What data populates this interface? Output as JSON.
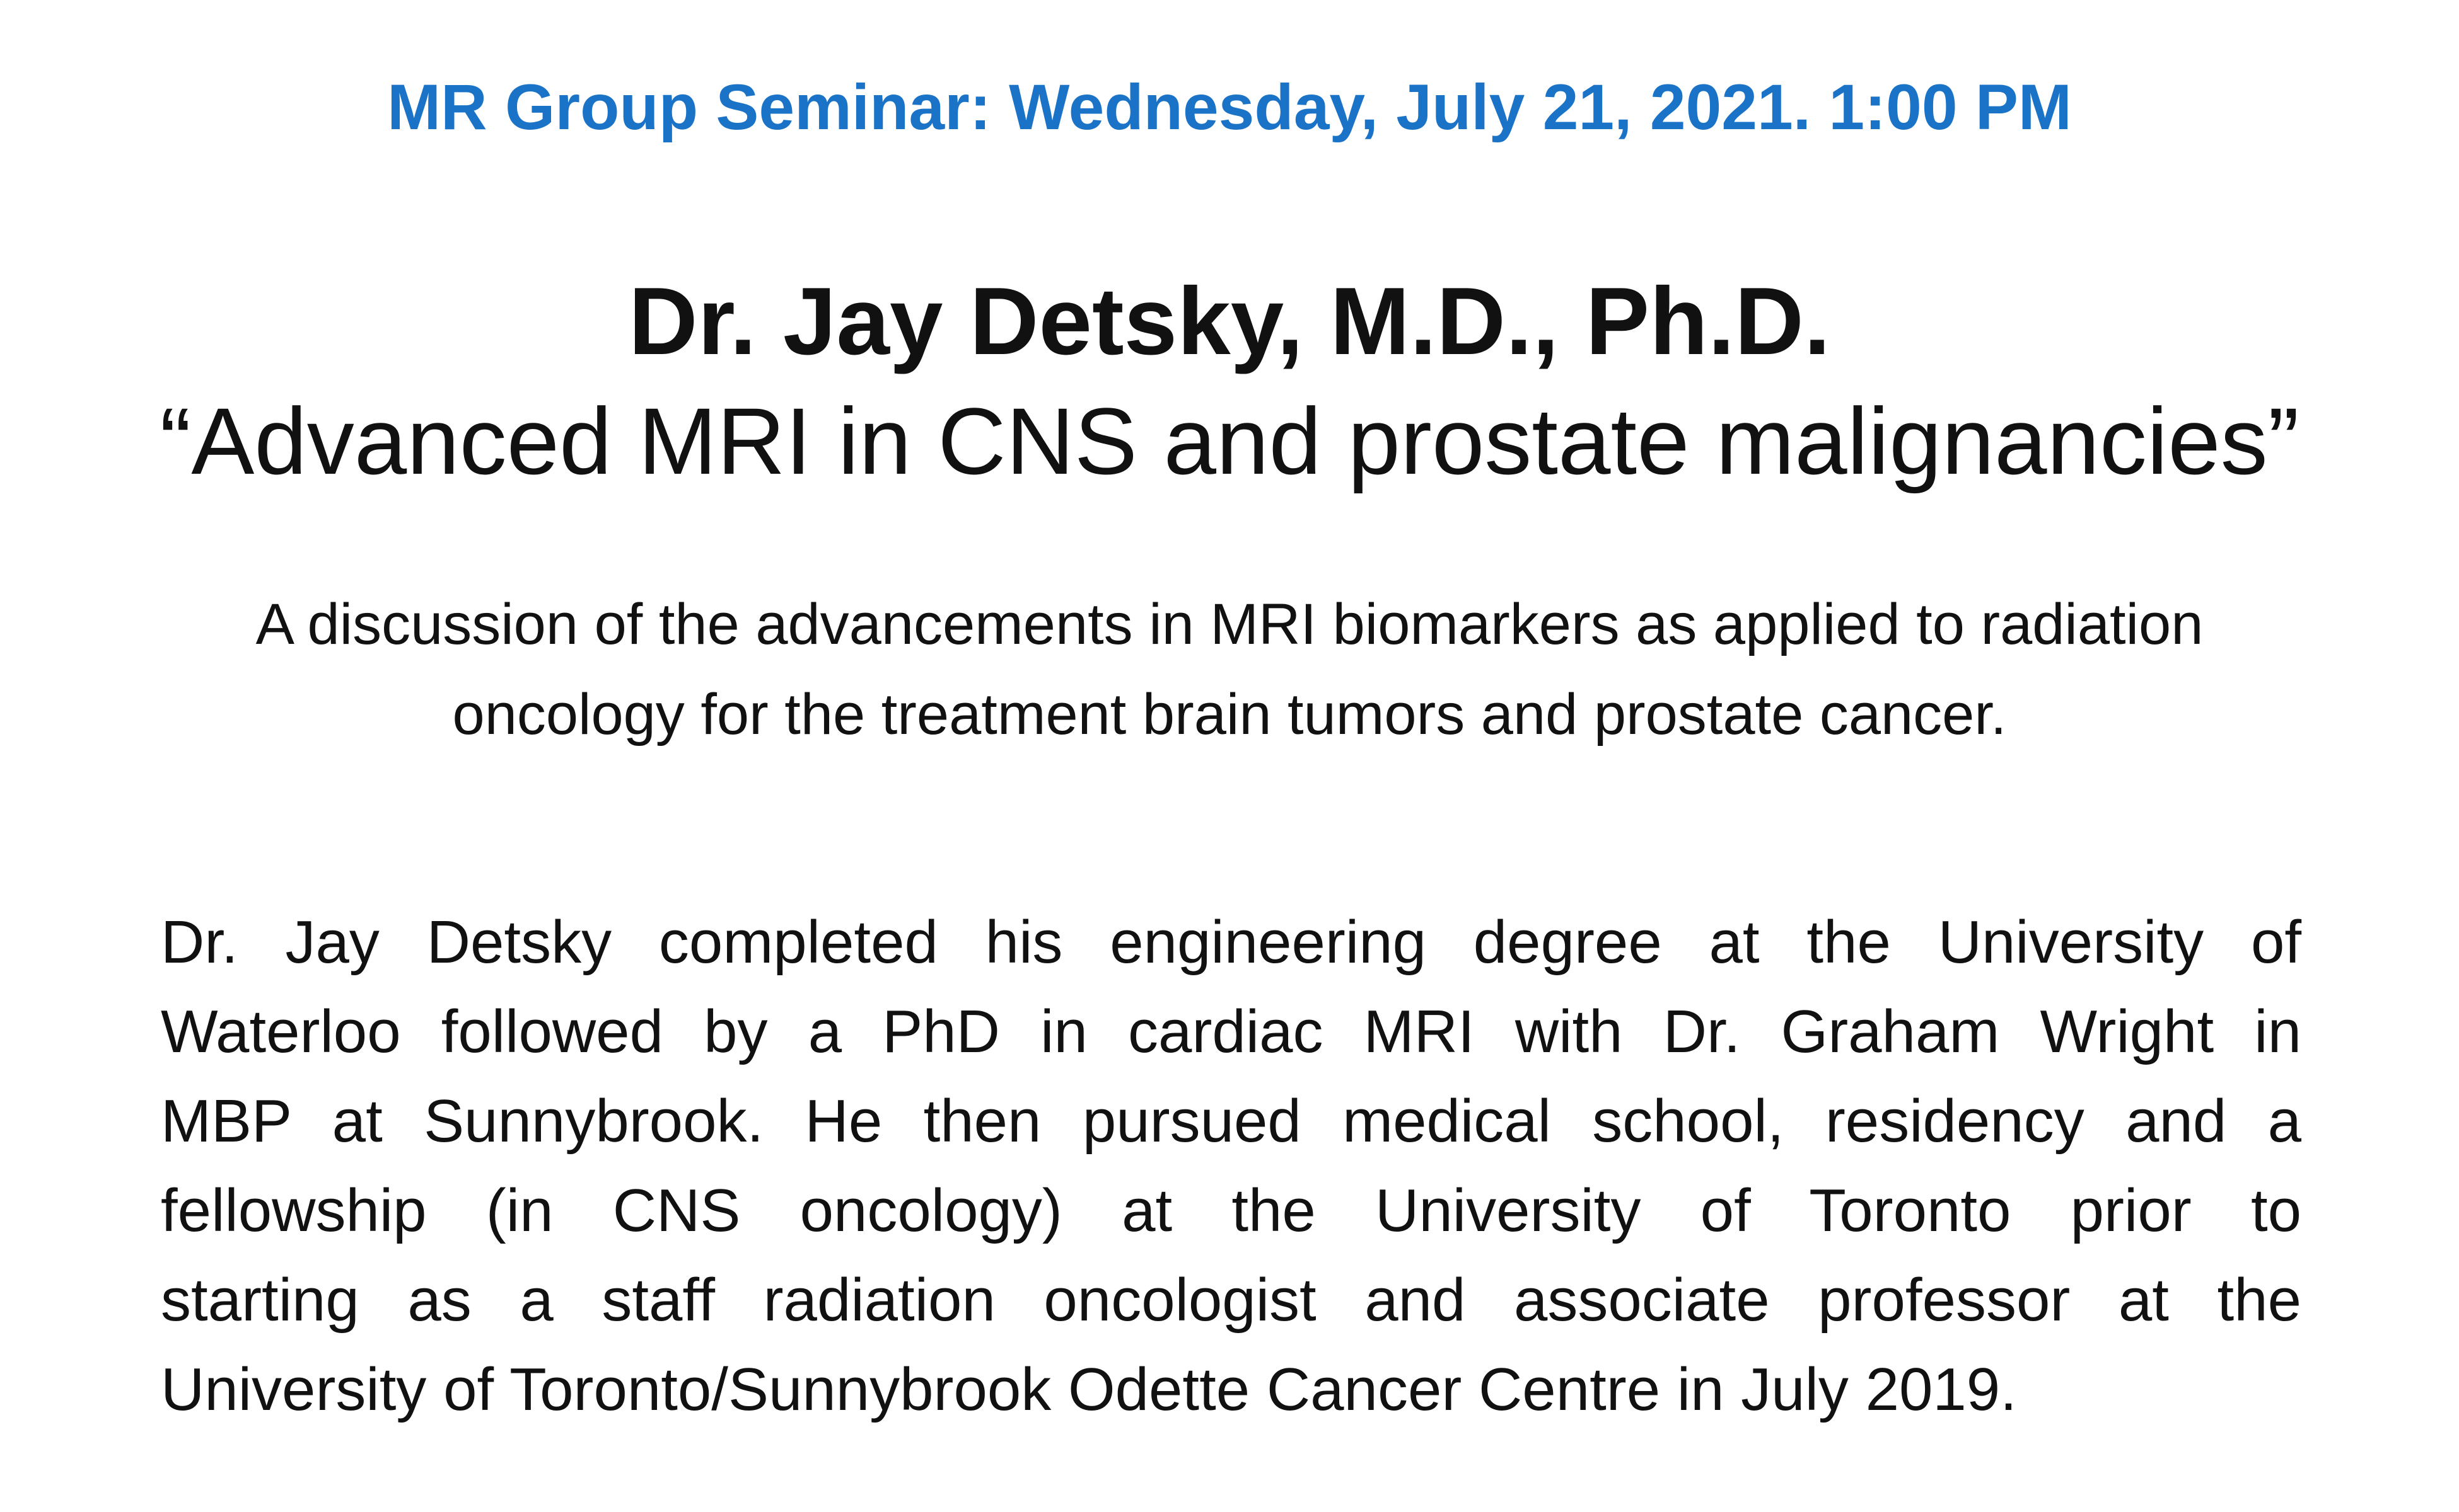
{
  "seminar": {
    "header": "MR Group Seminar: Wednesday, July 21, 2021. 1:00 PM",
    "header_color": "#1a73c7"
  },
  "speaker": {
    "name": "Dr. Jay Detsky, M.D., Ph.D."
  },
  "talk": {
    "title": "“Advanced MRI in CNS and prostate malignancies”"
  },
  "abstract": {
    "lines": [
      "A discussion of the advancements in MRI biomarkers as applied to radiation",
      "oncology for the treatment brain tumors and prostate cancer."
    ]
  },
  "bio": {
    "lines": [
      "Dr. Jay Detsky completed his engineering degree at the University of",
      "Waterloo followed by a PhD in cardiac MRI with Dr. Graham Wright in",
      "MBP at Sunnybrook. He then pursued medical school, residency and a",
      "fellowship (in CNS oncology) at the University of Toronto prior to",
      "starting as a staff radiation oncologist and associate professor at the",
      "University of Toronto/Sunnybrook Odette Cancer Centre in July 2019."
    ]
  }
}
